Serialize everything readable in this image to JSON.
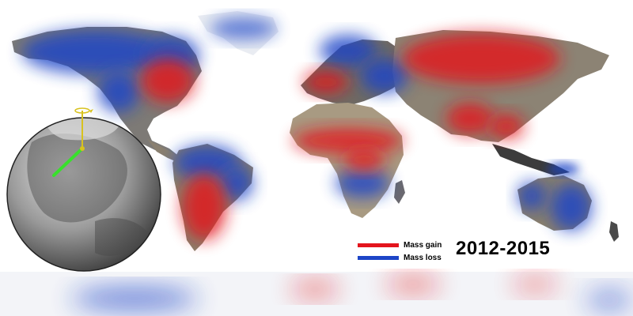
{
  "title": "",
  "period_label": "2012-2015",
  "legend": {
    "items": [
      {
        "label": "Mass gain",
        "color": "#e3141c"
      },
      {
        "label": "Mass loss",
        "color": "#1d45c7"
      }
    ]
  },
  "colors": {
    "gain": "#e3141c",
    "loss": "#1d45c7",
    "land": "#8a7f6c",
    "ocean": "#ffffff",
    "axis_marker": "#d8c21e",
    "pole_vector": "#38e02c"
  },
  "icons": {
    "globe": "globe-inset",
    "axis": "rotation-axis-icon",
    "vector": "polar-motion-arrow-icon"
  }
}
